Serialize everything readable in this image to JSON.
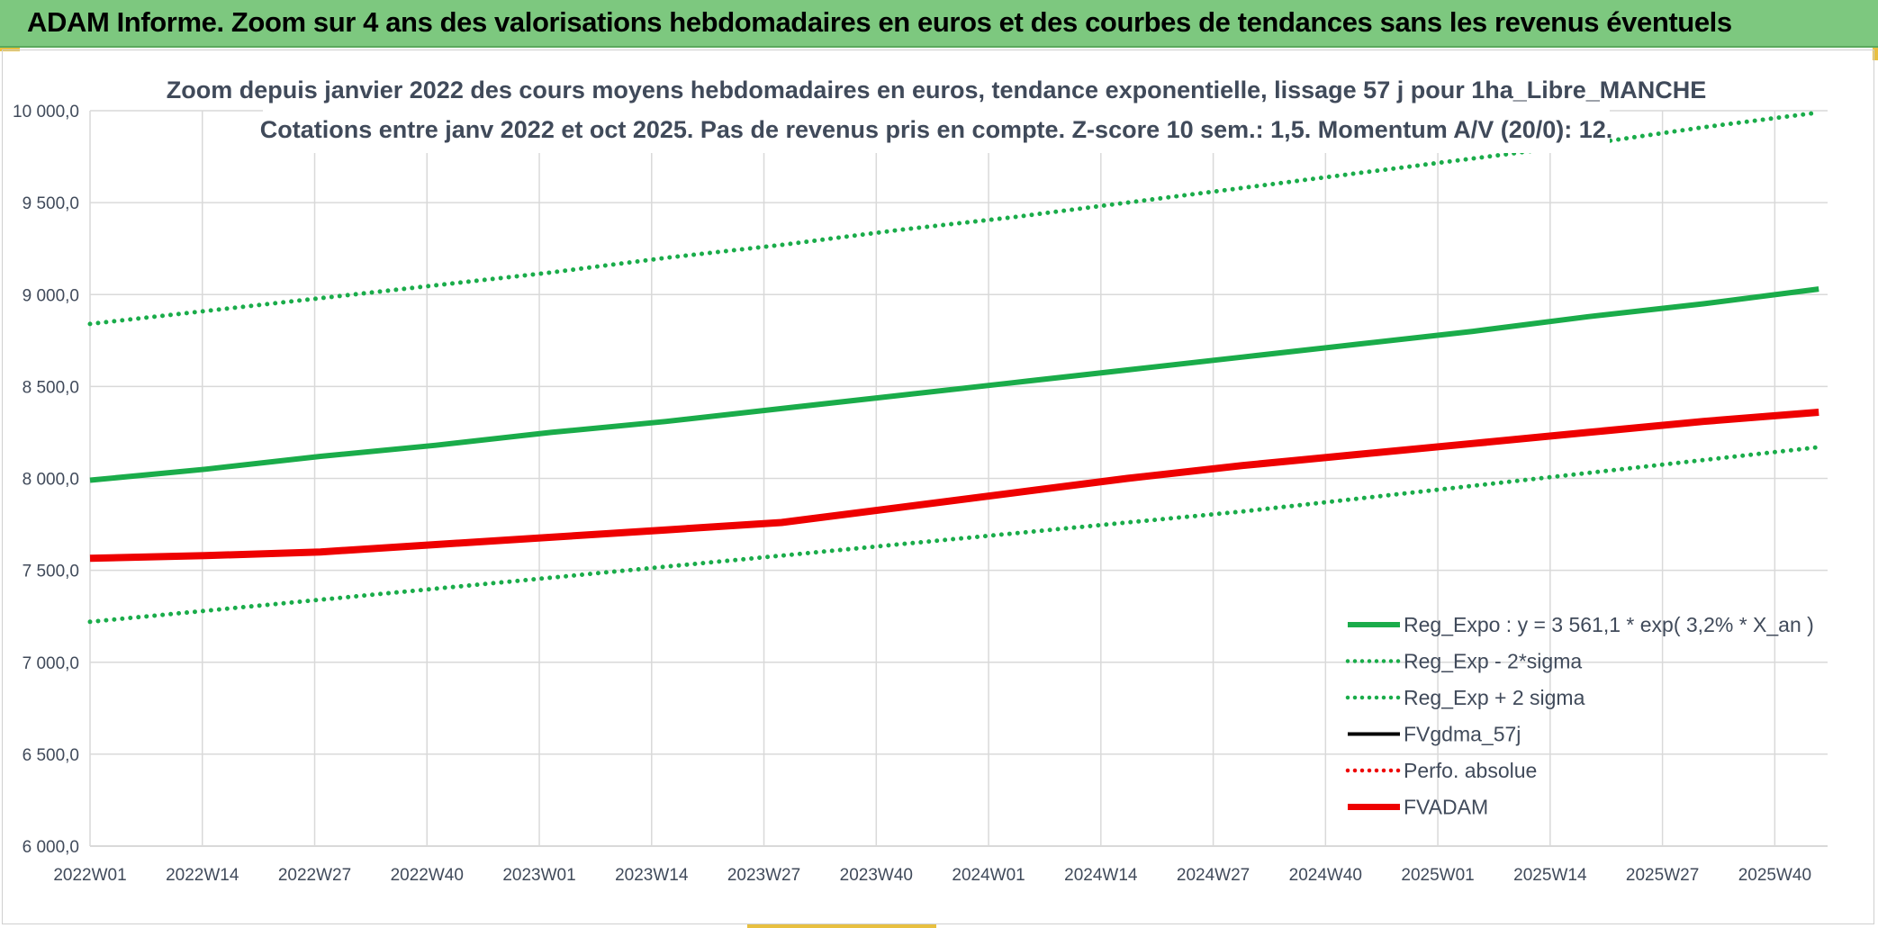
{
  "banner": {
    "title": "ADAM Informe. Zoom sur 4 ans des valorisations hebdomadaires en euros et des courbes de tendances sans les revenus éventuels"
  },
  "colors": {
    "banner": "#7dc87f",
    "green": "#1aac4a",
    "red": "#ee0000",
    "black": "#000000",
    "text": "#404a5a",
    "grid": "#d9d9d9"
  },
  "chart_data": {
    "type": "line",
    "title": "Zoom depuis janvier 2022 des cours moyens hebdomadaires en euros, tendance exponentielle, lissage 57 j pour 1ha_Libre_MANCHE",
    "subtitle": "Cotations entre janv 2022 et oct 2025. Pas de revenus pris en compte. Z-score 10 sem.: 1,5. Momentum A/V (20/0): 12.",
    "x_ticks": [
      "2022W01",
      "2022W14",
      "2022W27",
      "2022W40",
      "2023W01",
      "2023W14",
      "2023W27",
      "2023W40",
      "2024W01",
      "2024W14",
      "2024W27",
      "2024W40",
      "2025W01",
      "2025W14",
      "2025W27",
      "2025W40"
    ],
    "y_ticks": [
      "6 000,0",
      "6 500,0",
      "7 000,0",
      "7 500,0",
      "8 000,0",
      "8 500,0",
      "9 000,0",
      "9 500,0",
      "10 000,0"
    ],
    "ylim": [
      6000,
      10000
    ],
    "x_range_weeks": [
      0,
      196
    ],
    "grid": true,
    "legend_position": "bottom-right",
    "series": [
      {
        "name": "Reg_Expo : y = 3 561,1 * exp( 3,2% *  X_an )",
        "color": "#1aac4a",
        "style": "solid",
        "width": 6,
        "x": [
          0,
          13,
          26,
          39,
          52,
          65,
          78,
          91,
          104,
          117,
          130,
          143,
          156,
          169,
          182,
          195
        ],
        "y": [
          7990,
          8050,
          8120,
          8180,
          8250,
          8310,
          8380,
          8450,
          8520,
          8590,
          8660,
          8730,
          8800,
          8880,
          8950,
          9030
        ]
      },
      {
        "name": "Reg_Exp - 2*sigma",
        "color": "#1aac4a",
        "style": "dotted",
        "width": 5,
        "x": [
          0,
          13,
          26,
          39,
          52,
          65,
          78,
          91,
          104,
          117,
          130,
          143,
          156,
          169,
          182,
          195
        ],
        "y": [
          7220,
          7280,
          7340,
          7400,
          7460,
          7520,
          7580,
          7640,
          7700,
          7760,
          7820,
          7890,
          7960,
          8030,
          8100,
          8170
        ]
      },
      {
        "name": "Reg_Exp + 2 sigma",
        "color": "#1aac4a",
        "style": "dotted",
        "width": 5,
        "x": [
          0,
          13,
          26,
          39,
          52,
          65,
          78,
          91,
          104,
          117,
          130,
          143,
          156,
          169,
          182,
          195
        ],
        "y": [
          8840,
          8910,
          8980,
          9050,
          9120,
          9200,
          9270,
          9350,
          9420,
          9500,
          9580,
          9660,
          9740,
          9820,
          9910,
          9990
        ]
      },
      {
        "name": "FVgdma_57j",
        "color": "#000000",
        "style": "solid",
        "width": 4,
        "x": [],
        "y": []
      },
      {
        "name": "Perfo. absolue",
        "color": "#ee0000",
        "style": "dotted",
        "width": 4,
        "x": [],
        "y": []
      },
      {
        "name": "FVADAM",
        "color": "#ee0000",
        "style": "solid",
        "width": 8,
        "x": [
          0,
          13,
          26,
          39,
          52,
          65,
          78,
          91,
          104,
          117,
          130,
          143,
          156,
          169,
          182,
          195
        ],
        "y": [
          7565,
          7580,
          7600,
          7640,
          7680,
          7720,
          7760,
          7840,
          7920,
          8000,
          8070,
          8130,
          8190,
          8250,
          8310,
          8360
        ]
      }
    ]
  }
}
